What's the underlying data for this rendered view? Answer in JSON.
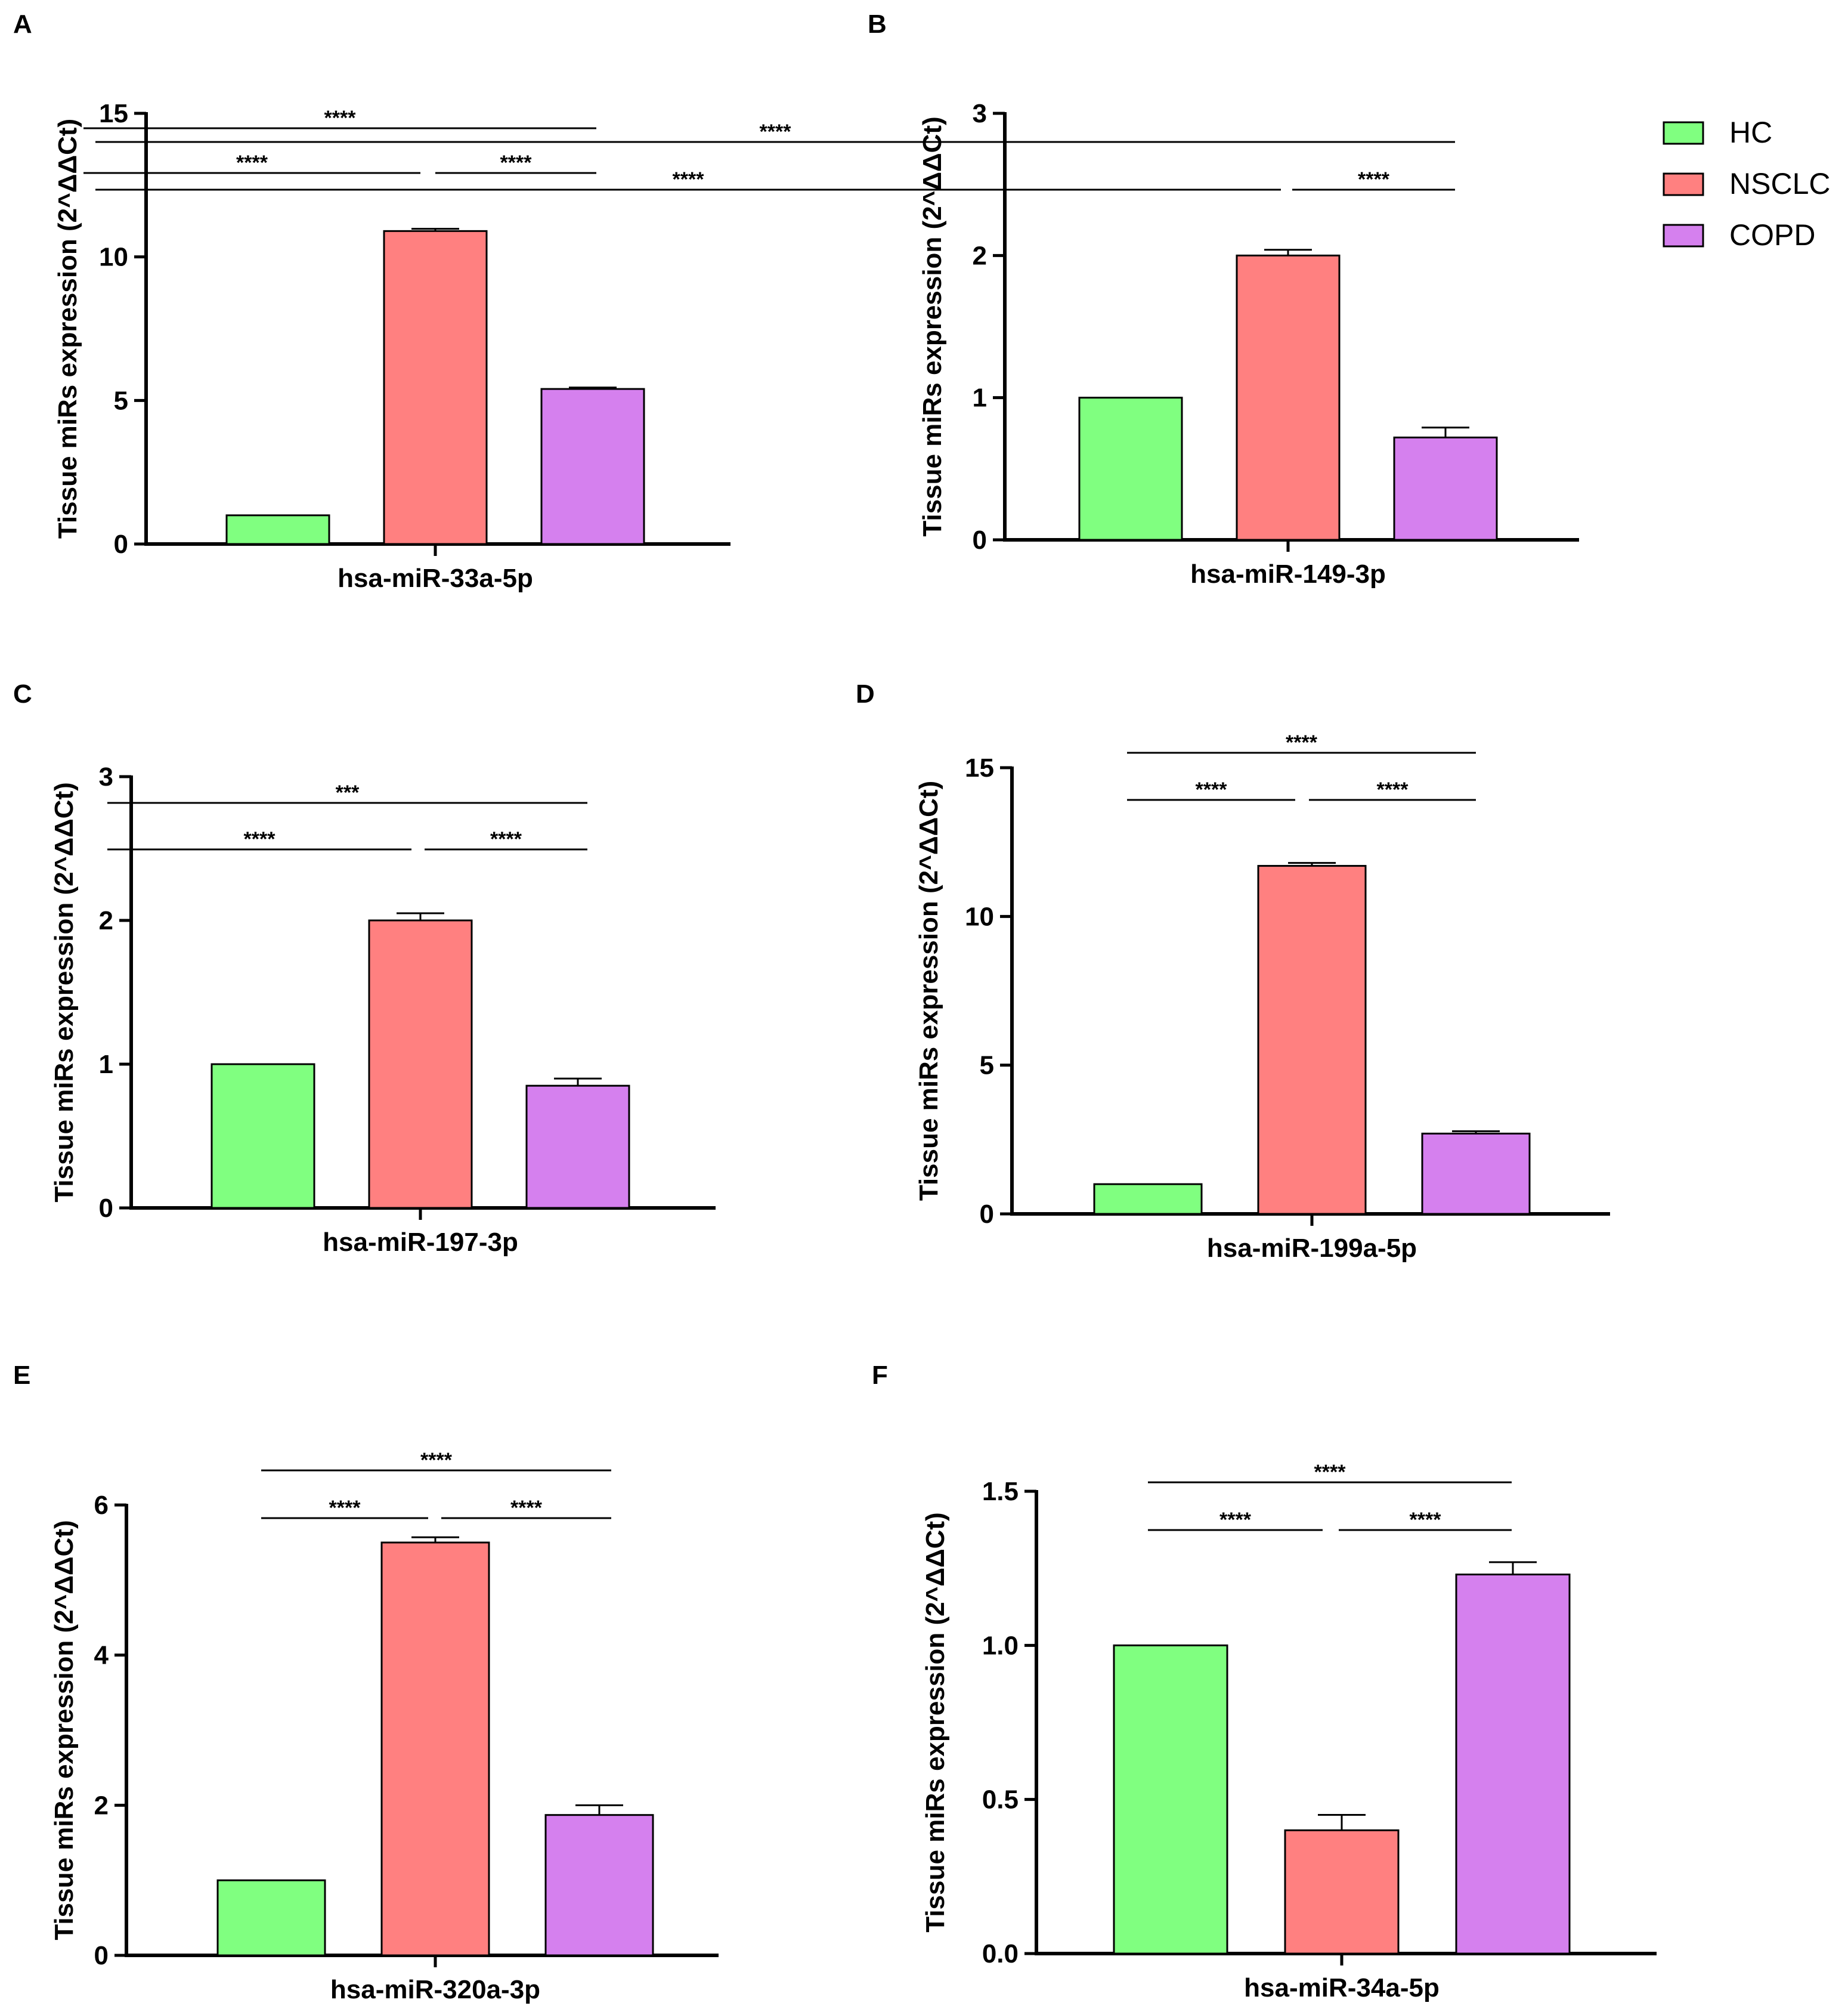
{
  "legend": {
    "items": [
      {
        "label": "HC",
        "color": "#80ff80"
      },
      {
        "label": "NSCLC",
        "color": "#ff8080"
      },
      {
        "label": "COPD",
        "color": "#d580ee"
      }
    ]
  },
  "chart_data": [
    {
      "type": "bar",
      "panel": "A",
      "title": "",
      "xlabel": "hsa-miR-33a-5p",
      "ylabel": "Tissue miRs expression (2^ΔΔCt)",
      "categories": [
        "HC",
        "NSCLC",
        "COPD"
      ],
      "values": [
        1.0,
        10.9,
        5.4
      ],
      "errors": [
        0,
        0.08,
        0.05
      ],
      "ylim": [
        0,
        15
      ],
      "yticks": [
        0,
        5,
        10,
        15
      ],
      "ytick_labels": [
        "0",
        "5",
        "10",
        "15"
      ],
      "significance": [
        {
          "from": 0,
          "to": 2,
          "label": "****"
        },
        {
          "from": 0,
          "to": 1,
          "label": "****"
        },
        {
          "from": 1,
          "to": 2,
          "label": "****"
        }
      ]
    },
    {
      "type": "bar",
      "panel": "B",
      "title": "",
      "xlabel": "hsa-miR-149-3p",
      "ylabel": "Tissue miRs expression (2^ΔΔCt)",
      "categories": [
        "HC",
        "NSCLC",
        "COPD"
      ],
      "values": [
        1.0,
        2.0,
        0.72
      ],
      "errors": [
        0,
        0.04,
        0.07
      ],
      "ylim": [
        0,
        3
      ],
      "yticks": [
        0,
        1,
        2,
        3
      ],
      "ytick_labels": [
        "0",
        "1",
        "2",
        "3"
      ],
      "significance": [
        {
          "from": 0,
          "to": 2,
          "label": "****"
        },
        {
          "from": 0,
          "to": 1,
          "label": "****"
        },
        {
          "from": 1,
          "to": 2,
          "label": "****"
        }
      ]
    },
    {
      "type": "bar",
      "panel": "C",
      "title": "",
      "xlabel": "hsa-miR-197-3p",
      "ylabel": "Tissue miRs expression (2^ΔΔCt)",
      "categories": [
        "HC",
        "NSCLC",
        "COPD"
      ],
      "values": [
        1.0,
        2.0,
        0.85
      ],
      "errors": [
        0,
        0.05,
        0.05
      ],
      "ylim": [
        0,
        3
      ],
      "yticks": [
        0,
        1,
        2,
        3
      ],
      "ytick_labels": [
        "0",
        "1",
        "2",
        "3"
      ],
      "significance": [
        {
          "from": 0,
          "to": 2,
          "label": "***"
        },
        {
          "from": 0,
          "to": 1,
          "label": "****"
        },
        {
          "from": 1,
          "to": 2,
          "label": "****"
        }
      ]
    },
    {
      "type": "bar",
      "panel": "D",
      "title": "",
      "xlabel": "hsa-miR-199a-5p",
      "ylabel": "Tissue miRs expression (2^ΔΔCt)",
      "categories": [
        "HC",
        "NSCLC",
        "COPD"
      ],
      "values": [
        1.0,
        11.7,
        2.7
      ],
      "errors": [
        0,
        0.1,
        0.08
      ],
      "ylim": [
        0,
        15
      ],
      "yticks": [
        0,
        5,
        10,
        15
      ],
      "ytick_labels": [
        "0",
        "5",
        "10",
        "15"
      ],
      "significance": [
        {
          "from": 0,
          "to": 2,
          "label": "****"
        },
        {
          "from": 0,
          "to": 1,
          "label": "****"
        },
        {
          "from": 1,
          "to": 2,
          "label": "****"
        }
      ]
    },
    {
      "type": "bar",
      "panel": "E",
      "title": "",
      "xlabel": "hsa-miR-320a-3p",
      "ylabel": "Tissue miRs expression (2^ΔΔCt)",
      "categories": [
        "HC",
        "NSCLC",
        "COPD"
      ],
      "values": [
        1.0,
        5.5,
        1.87
      ],
      "errors": [
        0,
        0.07,
        0.13
      ],
      "ylim": [
        0,
        6
      ],
      "yticks": [
        0,
        2,
        4,
        6
      ],
      "ytick_labels": [
        "0",
        "2",
        "4",
        "6"
      ],
      "significance": [
        {
          "from": 0,
          "to": 2,
          "label": "****"
        },
        {
          "from": 0,
          "to": 1,
          "label": "****"
        },
        {
          "from": 1,
          "to": 2,
          "label": "****"
        }
      ]
    },
    {
      "type": "bar",
      "panel": "F",
      "title": "",
      "xlabel": "hsa-miR-34a-5p",
      "ylabel": "Tissue miRs expression (2^ΔΔCt)",
      "categories": [
        "HC",
        "NSCLC",
        "COPD"
      ],
      "values": [
        1.0,
        0.4,
        1.23
      ],
      "errors": [
        0,
        0.05,
        0.04
      ],
      "ylim": [
        0,
        1.5
      ],
      "yticks": [
        0,
        0.5,
        1.0,
        1.5
      ],
      "ytick_labels": [
        "0.0",
        "0.5",
        "1.0",
        "1.5"
      ],
      "significance": [
        {
          "from": 0,
          "to": 2,
          "label": "****"
        },
        {
          "from": 0,
          "to": 1,
          "label": "****"
        },
        {
          "from": 1,
          "to": 2,
          "label": "****"
        }
      ]
    }
  ]
}
